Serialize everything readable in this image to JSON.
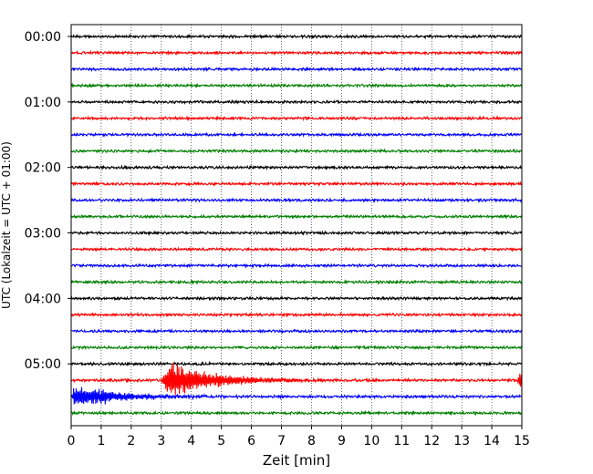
{
  "chart_data": {
    "type": "line",
    "xlabel": "Zeit  [min]",
    "ylabel": "UTC (Lokalzeit = UTC + 01:00)",
    "xlim": [
      0,
      15
    ],
    "x_ticks": [
      "0",
      "1",
      "2",
      "3",
      "4",
      "5",
      "6",
      "7",
      "8",
      "9",
      "10",
      "11",
      "12",
      "13",
      "14",
      "15"
    ],
    "y_tick_labels": [
      "00:00",
      "01:00",
      "02:00",
      "03:00",
      "04:00",
      "05:00"
    ],
    "trace_interval_minutes": 15,
    "trace_count": 24,
    "trace_colors": [
      "#000000",
      "#ff0000",
      "#0000ff",
      "#008000"
    ],
    "grid_x": true,
    "events": [
      {
        "trace_index": 21,
        "start_min": 3.0,
        "peak_min": 3.3,
        "duration_min": 4.5,
        "amplitude": 1.0
      },
      {
        "trace_index": 21,
        "start_min": 14.85,
        "peak_min": 15.0,
        "duration_min": 0.3,
        "amplitude": 0.8
      },
      {
        "trace_index": 22,
        "start_min": 0.0,
        "peak_min": 0.1,
        "duration_min": 5.0,
        "amplitude": 0.6
      }
    ]
  }
}
